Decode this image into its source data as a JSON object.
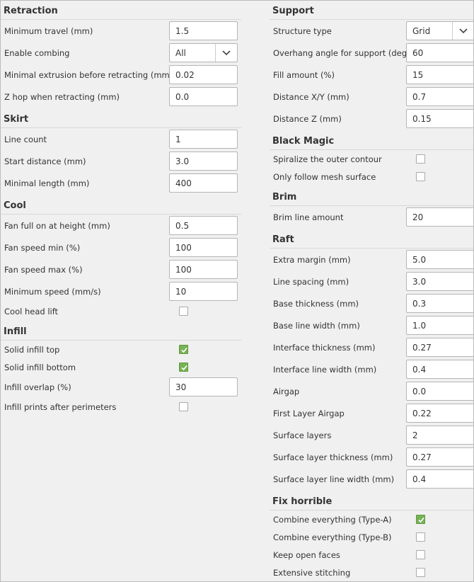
{
  "columns": [
    {
      "sections": [
        {
          "title": "Retraction",
          "rows": [
            {
              "label": "Minimum travel (mm)",
              "control": "input",
              "value": "1.5"
            },
            {
              "label": "Enable combing",
              "control": "select",
              "value": "All"
            },
            {
              "label": "Minimal extrusion before retracting (mm)",
              "control": "input",
              "value": "0.02"
            },
            {
              "label": "Z hop when retracting (mm)",
              "control": "input",
              "value": "0.0"
            }
          ]
        },
        {
          "title": "Skirt",
          "rows": [
            {
              "label": "Line count",
              "control": "input",
              "value": "1"
            },
            {
              "label": "Start distance (mm)",
              "control": "input",
              "value": "3.0"
            },
            {
              "label": "Minimal length (mm)",
              "control": "input",
              "value": "400"
            }
          ]
        },
        {
          "title": "Cool",
          "rows": [
            {
              "label": "Fan full on at height (mm)",
              "control": "input",
              "value": "0.5"
            },
            {
              "label": "Fan speed min (%)",
              "control": "input",
              "value": "100"
            },
            {
              "label": "Fan speed max (%)",
              "control": "input",
              "value": "100"
            },
            {
              "label": "Minimum speed (mm/s)",
              "control": "input",
              "value": "10"
            },
            {
              "label": "Cool head lift",
              "control": "checkbox",
              "checked": false
            }
          ]
        },
        {
          "title": "Infill",
          "rows": [
            {
              "label": "Solid infill top",
              "control": "checkbox",
              "checked": true
            },
            {
              "label": "Solid infill bottom",
              "control": "checkbox",
              "checked": true
            },
            {
              "label": "Infill overlap (%)",
              "control": "input",
              "value": "30"
            },
            {
              "label": "Infill prints after perimeters",
              "control": "checkbox",
              "checked": false
            }
          ]
        }
      ]
    },
    {
      "sections": [
        {
          "title": "Support",
          "rows": [
            {
              "label": "Structure type",
              "control": "select",
              "value": "Grid"
            },
            {
              "label": "Overhang angle for support (deg)",
              "control": "input",
              "value": "60"
            },
            {
              "label": "Fill amount (%)",
              "control": "input",
              "value": "15"
            },
            {
              "label": "Distance X/Y (mm)",
              "control": "input",
              "value": "0.7"
            },
            {
              "label": "Distance Z (mm)",
              "control": "input",
              "value": "0.15"
            }
          ]
        },
        {
          "title": "Black Magic",
          "rows": [
            {
              "label": "Spiralize the outer contour",
              "control": "checkbox",
              "checked": false
            },
            {
              "label": "Only follow mesh surface",
              "control": "checkbox",
              "checked": false
            }
          ]
        },
        {
          "title": "Brim",
          "rows": [
            {
              "label": "Brim line amount",
              "control": "input",
              "value": "20"
            }
          ]
        },
        {
          "title": "Raft",
          "rows": [
            {
              "label": "Extra margin (mm)",
              "control": "input",
              "value": "5.0"
            },
            {
              "label": "Line spacing (mm)",
              "control": "input",
              "value": "3.0"
            },
            {
              "label": "Base thickness (mm)",
              "control": "input",
              "value": "0.3"
            },
            {
              "label": "Base line width (mm)",
              "control": "input",
              "value": "1.0"
            },
            {
              "label": "Interface thickness (mm)",
              "control": "input",
              "value": "0.27"
            },
            {
              "label": "Interface line width (mm)",
              "control": "input",
              "value": "0.4"
            },
            {
              "label": "Airgap",
              "control": "input",
              "value": "0.0"
            },
            {
              "label": "First Layer Airgap",
              "control": "input",
              "value": "0.22"
            },
            {
              "label": "Surface layers",
              "control": "input",
              "value": "2"
            },
            {
              "label": "Surface layer thickness (mm)",
              "control": "input",
              "value": "0.27"
            },
            {
              "label": "Surface layer line width (mm)",
              "control": "input",
              "value": "0.4"
            }
          ]
        },
        {
          "title": "Fix horrible",
          "rows": [
            {
              "label": "Combine everything (Type-A)",
              "control": "checkbox",
              "checked": true
            },
            {
              "label": "Combine everything (Type-B)",
              "control": "checkbox",
              "checked": false
            },
            {
              "label": "Keep open faces",
              "control": "checkbox",
              "checked": false
            },
            {
              "label": "Extensive stitching",
              "control": "checkbox",
              "checked": false
            }
          ]
        }
      ]
    }
  ]
}
